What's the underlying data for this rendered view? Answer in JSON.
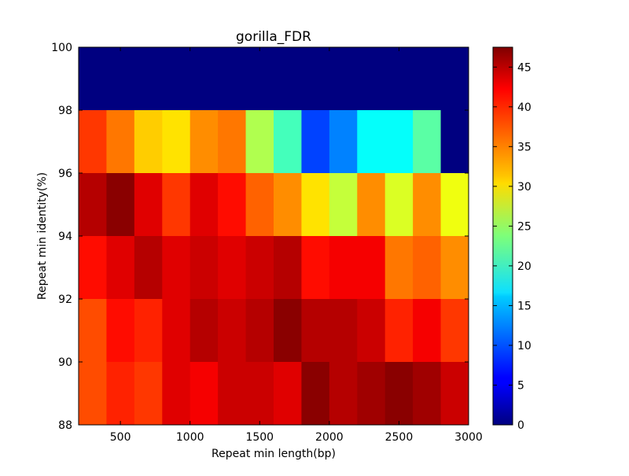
{
  "chart_data": {
    "type": "heatmap",
    "title": "gorilla_FDR",
    "xlabel": "Repeat min length(bp)",
    "ylabel": "Repeat min identity(%)",
    "x_range": [
      200,
      3000
    ],
    "y_range": [
      88,
      100
    ],
    "x_bin_width": 200,
    "y_bin_height": 2,
    "x_ticks": [
      500,
      1000,
      1500,
      2000,
      2500,
      3000
    ],
    "y_ticks": [
      88,
      90,
      92,
      94,
      96,
      98,
      100
    ],
    "colorbar": {
      "colormap": "jet",
      "vmin": 0,
      "vmax": 47.5,
      "ticks": [
        0,
        5,
        10,
        15,
        20,
        25,
        30,
        35,
        40,
        45
      ]
    },
    "grid": false,
    "x_bin_starts": [
      200,
      400,
      600,
      800,
      1000,
      1200,
      1400,
      1600,
      1800,
      2000,
      2200,
      2400,
      2600,
      2800
    ],
    "rows": [
      {
        "y_from": 98,
        "y_to": 100,
        "values": [
          0,
          0,
          0,
          0,
          0,
          0,
          0,
          0,
          0,
          0,
          0,
          0,
          0,
          0
        ]
      },
      {
        "y_from": 96,
        "y_to": 98,
        "values": [
          39,
          36,
          32,
          31,
          35,
          36,
          26,
          21,
          9,
          12,
          18,
          18,
          22,
          0
        ]
      },
      {
        "y_from": 94,
        "y_to": 96,
        "values": [
          45,
          47,
          43,
          39,
          43,
          41,
          37,
          35,
          31,
          27,
          35,
          28,
          35,
          29
        ]
      },
      {
        "y_from": 92,
        "y_to": 94,
        "values": [
          41,
          43,
          45,
          43,
          44,
          43,
          44,
          45,
          41,
          42,
          42,
          36,
          37,
          35
        ]
      },
      {
        "y_from": 90,
        "y_to": 92,
        "values": [
          38,
          41,
          40,
          43,
          45,
          44,
          45,
          47,
          45,
          45,
          44,
          40,
          42,
          39
        ]
      },
      {
        "y_from": 88,
        "y_to": 90,
        "values": [
          38,
          40,
          39,
          43,
          42,
          44,
          44,
          43,
          47,
          45,
          46,
          47,
          46,
          44
        ]
      }
    ]
  }
}
